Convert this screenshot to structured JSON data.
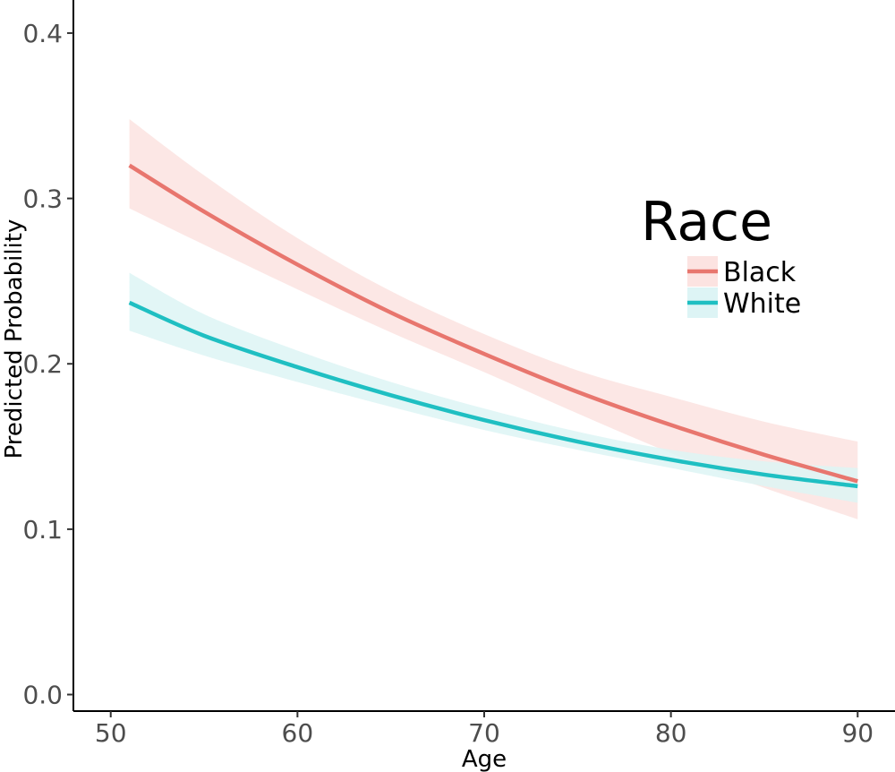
{
  "chart_data": {
    "type": "line",
    "xlabel": "Age",
    "ylabel": "Predicted Probability",
    "xlim": [
      48,
      92
    ],
    "ylim": [
      -0.01,
      0.42
    ],
    "x_ticks": [
      50,
      60,
      70,
      80,
      90
    ],
    "x_tick_labels": [
      "50",
      "60",
      "70",
      "80",
      "90"
    ],
    "y_ticks": [
      0.0,
      0.1,
      0.2,
      0.3,
      0.4
    ],
    "y_tick_labels": [
      "0.0",
      "0.1",
      "0.2",
      "0.3",
      "0.4"
    ],
    "grid": false,
    "legend": {
      "title": "Race",
      "position": "right"
    },
    "x": [
      51,
      55,
      60,
      65,
      70,
      75,
      80,
      85,
      90
    ],
    "series": [
      {
        "name": "Black",
        "color": "#E8766E",
        "band_color": "#FCE3E1",
        "values": [
          0.32,
          0.292,
          0.26,
          0.231,
          0.206,
          0.183,
          0.163,
          0.145,
          0.129
        ],
        "lower": [
          0.294,
          0.272,
          0.245,
          0.219,
          0.195,
          0.17,
          0.146,
          0.125,
          0.106
        ],
        "upper": [
          0.348,
          0.314,
          0.276,
          0.244,
          0.218,
          0.196,
          0.18,
          0.165,
          0.153
        ]
      },
      {
        "name": "White",
        "color": "#1FBFC2",
        "band_color": "#DDF4F5",
        "values": [
          0.237,
          0.217,
          0.198,
          0.181,
          0.166,
          0.153,
          0.142,
          0.133,
          0.126
        ],
        "lower": [
          0.22,
          0.205,
          0.189,
          0.174,
          0.16,
          0.148,
          0.137,
          0.126,
          0.116
        ],
        "upper": [
          0.255,
          0.23,
          0.208,
          0.189,
          0.173,
          0.159,
          0.148,
          0.141,
          0.137
        ]
      }
    ]
  }
}
